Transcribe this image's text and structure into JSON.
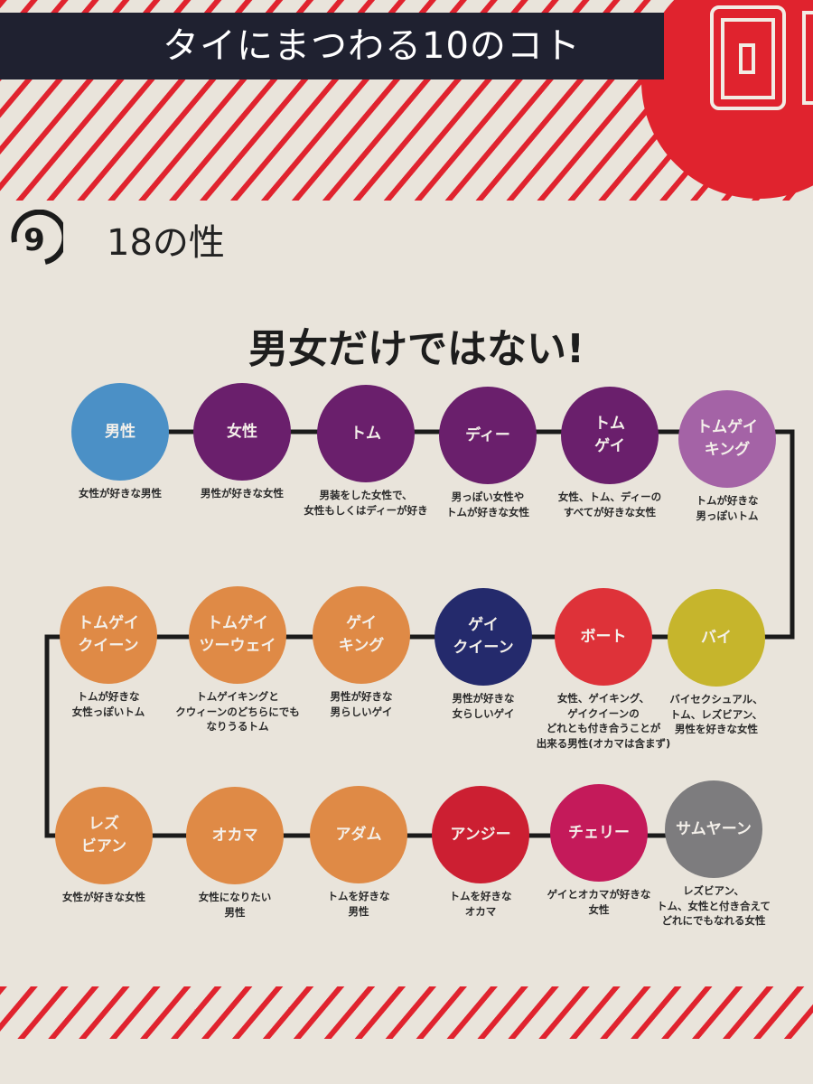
{
  "header": {
    "title": "タイにまつわる10のコト",
    "accent_color": "#e0232e",
    "banner_color": "#1f2130"
  },
  "section": {
    "number": "9",
    "title": "18の性"
  },
  "headline": "男女だけではない!",
  "nodes": [
    {
      "label": "男性",
      "desc": "女性が好きな男性",
      "color": "#4b90c6"
    },
    {
      "label": "女性",
      "desc": "男性が好きな女性",
      "color": "#6a1f6c"
    },
    {
      "label": "トム",
      "desc": "男装をした女性で、\n女性もしくはディーが好き",
      "color": "#6a1f6c"
    },
    {
      "label": "ディー",
      "desc": "男っぽい女性や\nトムが好きな女性",
      "color": "#6a1f6c"
    },
    {
      "label": "トム\nゲイ",
      "desc": "女性、トム、ディーの\nすべてが好きな女性",
      "color": "#6a1f6c"
    },
    {
      "label": "トムゲイ\nキング",
      "desc": "トムが好きな\n男っぽいトム",
      "color": "#a463a6"
    },
    {
      "label": "バイ",
      "desc": "バイセクシュアル、\nトム、レズビアン、\n男性を好きな女性",
      "color": "#c6b52c"
    },
    {
      "label": "ボート",
      "desc": "女性、ゲイキング、\nゲイクイーンの\nどれとも付き合うことが\n出来る男性(オカマは含まず)",
      "color": "#de3239"
    },
    {
      "label": "ゲイ\nクイーン",
      "desc": "男性が好きな\n女らしいゲイ",
      "color": "#242a6c"
    },
    {
      "label": "ゲイ\nキング",
      "desc": "男性が好きな\n男らしいゲイ",
      "color": "#df8a46"
    },
    {
      "label": "トムゲイ\nツーウェイ",
      "desc": "トムゲイキングと\nクウィーンのどちらにでも\nなりうるトム",
      "color": "#df8a46"
    },
    {
      "label": "トムゲイ\nクイーン",
      "desc": "トムが好きな\n女性っぽいトム",
      "color": "#df8a46"
    },
    {
      "label": "レズ\nビアン",
      "desc": "女性が好きな女性",
      "color": "#df8a46"
    },
    {
      "label": "オカマ",
      "desc": "女性になりたい\n男性",
      "color": "#df8a46"
    },
    {
      "label": "アダム",
      "desc": "トムを好きな\n男性",
      "color": "#df8a46"
    },
    {
      "label": "アンジー",
      "desc": "トムを好きな\nオカマ",
      "color": "#cc1f32"
    },
    {
      "label": "チェリー",
      "desc": "ゲイとオカマが好きな\n女性",
      "color": "#c41a5a"
    },
    {
      "label": "サムヤーン",
      "desc": "レズビアン、\nトム、女性と付き合えて\nどれにでもなれる女性",
      "color": "#7d7c7e"
    }
  ]
}
